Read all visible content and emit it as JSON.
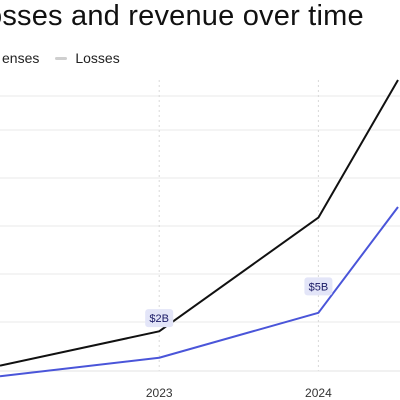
{
  "title": "osses and revenue over time",
  "legend": [
    {
      "label": "enses",
      "color": "#1f1f1f"
    },
    {
      "label": "Losses",
      "color": "#cfcfcf"
    }
  ],
  "chart_data": {
    "type": "line",
    "title": "osses and revenue over time",
    "xlabel": "",
    "ylabel": "",
    "x_ticks": [
      "2023",
      "2024"
    ],
    "x_tick_positions": [
      2023,
      2024
    ],
    "xlim": [
      2022.0,
      2024.5
    ],
    "ylim": [
      0,
      11
    ],
    "grid": true,
    "series": [
      {
        "name": "enses",
        "color": "#111111",
        "x": [
          2022.0,
          2023.0,
          2024.0,
          2024.5
        ],
        "y": [
          0.2,
          1.5,
          5.8,
          11.0
        ]
      },
      {
        "name": "",
        "color": "#4a55d9",
        "x": [
          2022.0,
          2023.0,
          2024.0,
          2024.5
        ],
        "y": [
          -0.2,
          0.5,
          2.2,
          6.2
        ]
      }
    ],
    "annotations": [
      {
        "text": "$2B",
        "x": 2023.0,
        "y": 2.0
      },
      {
        "text": "$5B",
        "x": 2024.0,
        "y": 3.2
      }
    ]
  }
}
